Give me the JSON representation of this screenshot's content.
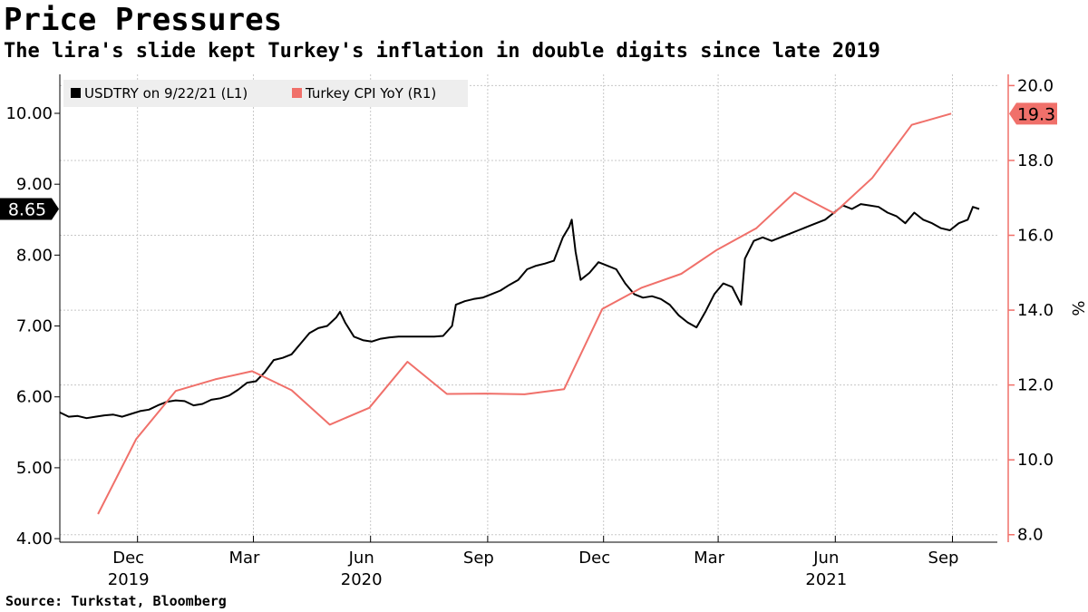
{
  "title": "Price Pressures",
  "subtitle": "The lira's slide kept Turkey's inflation in double digits since late 2019",
  "source": "Source: Turkstat, Bloomberg",
  "colors": {
    "usdtry": "#000000",
    "cpi": "#f0706a",
    "grid": "#c8c8c8",
    "legend_bg": "#eeeeee"
  },
  "chart_data": {
    "type": "line",
    "title": "Price Pressures",
    "legend": {
      "placement": "top-left",
      "entries": [
        "USDTRY on 9/22/21 (L1)",
        "Turkey CPI YoY (R1)"
      ]
    },
    "grid": true,
    "x_range": [
      "2019-10-01",
      "2021-09-22"
    ],
    "x_month_labels": [
      {
        "label": "Dec",
        "date": "2019-12-01"
      },
      {
        "label": "Mar",
        "date": "2020-03-01"
      },
      {
        "label": "Jun",
        "date": "2020-06-01"
      },
      {
        "label": "Sep",
        "date": "2020-09-01"
      },
      {
        "label": "Dec",
        "date": "2020-12-01"
      },
      {
        "label": "Mar",
        "date": "2021-03-01"
      },
      {
        "label": "Jun",
        "date": "2021-06-01"
      },
      {
        "label": "Sep",
        "date": "2021-09-01"
      }
    ],
    "x_year_labels": [
      {
        "label": "2019",
        "date": "2019-12-01"
      },
      {
        "label": "2020",
        "date": "2020-06-01"
      },
      {
        "label": "2021",
        "date": "2021-06-01"
      }
    ],
    "y_left": {
      "ylim": [
        3.95,
        10.55
      ],
      "ticks": [
        "4.00",
        "5.00",
        "6.00",
        "7.00",
        "8.00",
        "9.00",
        "10.00"
      ],
      "last_value_label": "8.65",
      "last_value": 8.65
    },
    "y_right": {
      "ylim": [
        7.8,
        20.3
      ],
      "ticks": [
        "8.0",
        "10.0",
        "12.0",
        "14.0",
        "16.0",
        "18.0",
        "20.0"
      ],
      "unit_label": "%",
      "last_value_label": "19.3",
      "last_value": 19.25
    },
    "series": [
      {
        "name": "USDTRY on 9/22/21 (L1)",
        "axis": "left",
        "points": [
          [
            "2019-10-01",
            5.78
          ],
          [
            "2019-10-08",
            5.72
          ],
          [
            "2019-10-15",
            5.73
          ],
          [
            "2019-10-22",
            5.7
          ],
          [
            "2019-10-29",
            5.72
          ],
          [
            "2019-11-05",
            5.74
          ],
          [
            "2019-11-12",
            5.75
          ],
          [
            "2019-11-19",
            5.72
          ],
          [
            "2019-11-26",
            5.76
          ],
          [
            "2019-12-03",
            5.8
          ],
          [
            "2019-12-10",
            5.82
          ],
          [
            "2019-12-17",
            5.88
          ],
          [
            "2019-12-24",
            5.93
          ],
          [
            "2019-12-31",
            5.95
          ],
          [
            "2020-01-07",
            5.94
          ],
          [
            "2020-01-14",
            5.88
          ],
          [
            "2020-01-21",
            5.9
          ],
          [
            "2020-01-28",
            5.96
          ],
          [
            "2020-02-04",
            5.98
          ],
          [
            "2020-02-11",
            6.02
          ],
          [
            "2020-02-18",
            6.1
          ],
          [
            "2020-02-25",
            6.2
          ],
          [
            "2020-03-03",
            6.22
          ],
          [
            "2020-03-10",
            6.35
          ],
          [
            "2020-03-17",
            6.52
          ],
          [
            "2020-03-24",
            6.55
          ],
          [
            "2020-03-31",
            6.6
          ],
          [
            "2020-04-07",
            6.75
          ],
          [
            "2020-04-14",
            6.9
          ],
          [
            "2020-04-21",
            6.97
          ],
          [
            "2020-04-28",
            7.0
          ],
          [
            "2020-05-05",
            7.12
          ],
          [
            "2020-05-08",
            7.2
          ],
          [
            "2020-05-12",
            7.05
          ],
          [
            "2020-05-19",
            6.85
          ],
          [
            "2020-05-26",
            6.8
          ],
          [
            "2020-06-02",
            6.78
          ],
          [
            "2020-06-09",
            6.82
          ],
          [
            "2020-06-16",
            6.84
          ],
          [
            "2020-06-23",
            6.85
          ],
          [
            "2020-06-30",
            6.85
          ],
          [
            "2020-07-07",
            6.85
          ],
          [
            "2020-07-14",
            6.85
          ],
          [
            "2020-07-21",
            6.85
          ],
          [
            "2020-07-28",
            6.86
          ],
          [
            "2020-08-04",
            7.0
          ],
          [
            "2020-08-07",
            7.3
          ],
          [
            "2020-08-14",
            7.35
          ],
          [
            "2020-08-21",
            7.38
          ],
          [
            "2020-08-28",
            7.4
          ],
          [
            "2020-09-04",
            7.45
          ],
          [
            "2020-09-11",
            7.5
          ],
          [
            "2020-09-18",
            7.58
          ],
          [
            "2020-09-25",
            7.65
          ],
          [
            "2020-10-02",
            7.8
          ],
          [
            "2020-10-09",
            7.85
          ],
          [
            "2020-10-16",
            7.88
          ],
          [
            "2020-10-23",
            7.92
          ],
          [
            "2020-10-30",
            8.25
          ],
          [
            "2020-11-04",
            8.4
          ],
          [
            "2020-11-06",
            8.5
          ],
          [
            "2020-11-09",
            8.05
          ],
          [
            "2020-11-13",
            7.65
          ],
          [
            "2020-11-20",
            7.75
          ],
          [
            "2020-11-27",
            7.9
          ],
          [
            "2020-12-04",
            7.85
          ],
          [
            "2020-12-11",
            7.8
          ],
          [
            "2020-12-18",
            7.6
          ],
          [
            "2020-12-25",
            7.45
          ],
          [
            "2021-01-01",
            7.4
          ],
          [
            "2021-01-08",
            7.42
          ],
          [
            "2021-01-15",
            7.38
          ],
          [
            "2021-01-22",
            7.3
          ],
          [
            "2021-01-29",
            7.15
          ],
          [
            "2021-02-05",
            7.05
          ],
          [
            "2021-02-12",
            6.98
          ],
          [
            "2021-02-19",
            7.2
          ],
          [
            "2021-02-26",
            7.45
          ],
          [
            "2021-03-05",
            7.6
          ],
          [
            "2021-03-12",
            7.55
          ],
          [
            "2021-03-19",
            7.3
          ],
          [
            "2021-03-22",
            7.95
          ],
          [
            "2021-03-29",
            8.2
          ],
          [
            "2021-04-05",
            8.25
          ],
          [
            "2021-04-12",
            8.2
          ],
          [
            "2021-04-19",
            8.25
          ],
          [
            "2021-04-26",
            8.3
          ],
          [
            "2021-05-03",
            8.35
          ],
          [
            "2021-05-10",
            8.4
          ],
          [
            "2021-05-17",
            8.45
          ],
          [
            "2021-05-24",
            8.5
          ],
          [
            "2021-05-31",
            8.6
          ],
          [
            "2021-06-07",
            8.7
          ],
          [
            "2021-06-14",
            8.65
          ],
          [
            "2021-06-21",
            8.72
          ],
          [
            "2021-06-28",
            8.7
          ],
          [
            "2021-07-05",
            8.68
          ],
          [
            "2021-07-12",
            8.6
          ],
          [
            "2021-07-19",
            8.55
          ],
          [
            "2021-07-26",
            8.45
          ],
          [
            "2021-08-02",
            8.6
          ],
          [
            "2021-08-09",
            8.5
          ],
          [
            "2021-08-16",
            8.45
          ],
          [
            "2021-08-23",
            8.38
          ],
          [
            "2021-08-30",
            8.35
          ],
          [
            "2021-09-06",
            8.45
          ],
          [
            "2021-09-13",
            8.5
          ],
          [
            "2021-09-17",
            8.68
          ],
          [
            "2021-09-22",
            8.65
          ]
        ]
      },
      {
        "name": "Turkey CPI YoY (R1)",
        "axis": "right",
        "points": [
          [
            "2019-10-31",
            8.55
          ],
          [
            "2019-11-30",
            10.56
          ],
          [
            "2019-12-31",
            11.84
          ],
          [
            "2020-01-31",
            12.15
          ],
          [
            "2020-02-29",
            12.37
          ],
          [
            "2020-03-31",
            11.86
          ],
          [
            "2020-04-30",
            10.94
          ],
          [
            "2020-05-31",
            11.39
          ],
          [
            "2020-06-30",
            12.62
          ],
          [
            "2020-07-31",
            11.76
          ],
          [
            "2020-08-31",
            11.77
          ],
          [
            "2020-09-30",
            11.75
          ],
          [
            "2020-10-31",
            11.89
          ],
          [
            "2020-11-30",
            14.03
          ],
          [
            "2020-12-31",
            14.6
          ],
          [
            "2021-01-31",
            14.97
          ],
          [
            "2021-02-28",
            15.61
          ],
          [
            "2021-03-31",
            16.19
          ],
          [
            "2021-04-30",
            17.14
          ],
          [
            "2021-05-31",
            16.59
          ],
          [
            "2021-06-30",
            17.53
          ],
          [
            "2021-07-31",
            18.95
          ],
          [
            "2021-08-31",
            19.25
          ]
        ]
      }
    ]
  }
}
